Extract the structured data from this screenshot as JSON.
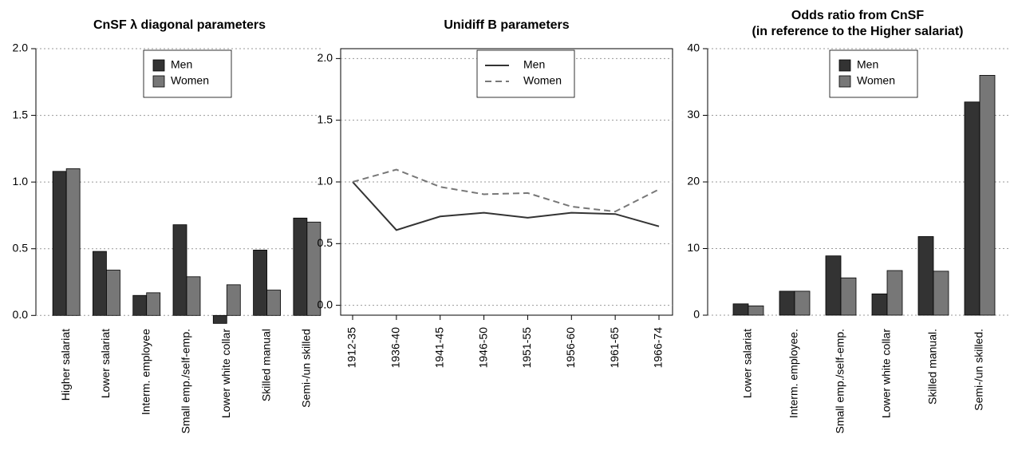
{
  "chart_data": [
    {
      "type": "bar",
      "title": [
        "CnSF λ diagonal parameters"
      ],
      "categories": [
        "Higher salariat",
        "Lower salariat",
        "Interm. employee",
        "Small emp./self-emp.",
        "Lower white collar",
        "Skilled manual",
        "Semi-/un skilled"
      ],
      "series": [
        {
          "name": "Men",
          "color": "#333333",
          "values": [
            1.08,
            0.48,
            0.15,
            0.68,
            -0.06,
            0.49,
            0.73
          ]
        },
        {
          "name": "Women",
          "color": "#777777",
          "values": [
            1.1,
            0.34,
            0.17,
            0.29,
            0.23,
            0.19,
            0.7
          ]
        }
      ],
      "ylim": [
        -0.07,
        2.0
      ],
      "yticks": [
        {
          "value": 0,
          "label": "0.0"
        },
        0.5,
        {
          "value": 1,
          "label": "1.0"
        },
        1.5,
        {
          "value": 2,
          "label": "2.0"
        }
      ],
      "grid": true,
      "legend": "top"
    },
    {
      "type": "line",
      "title": [
        "Unidiff B parameters"
      ],
      "categories": [
        "1912-35",
        "1936-40",
        "1941-45",
        "1946-50",
        "1951-55",
        "1956-60",
        "1961-65",
        "1966-74"
      ],
      "series": [
        {
          "name": "Men",
          "color": "#333333",
          "dash": "solid",
          "values": [
            1.0,
            0.61,
            0.72,
            0.75,
            0.71,
            0.75,
            0.74,
            0.64
          ]
        },
        {
          "name": "Women",
          "color": "#777777",
          "dash": "dashed",
          "values": [
            1.0,
            1.1,
            0.96,
            0.9,
            0.91,
            0.8,
            0.76,
            0.94
          ]
        }
      ],
      "ylim": [
        -0.08,
        2.08
      ],
      "yticks": [
        {
          "value": 0,
          "label": "0.0"
        },
        0.5,
        {
          "value": 1,
          "label": "1.0"
        },
        1.5,
        {
          "value": 2,
          "label": "2.0"
        }
      ],
      "grid": true,
      "legend": "top"
    },
    {
      "type": "bar",
      "title": [
        "Odds ratio from CnSF",
        "(in reference to the Higher salariat)"
      ],
      "categories": [
        "Lower salariat",
        "Interm. employee.",
        "Small emp./self-emp.",
        "Lower white collar",
        "Skilled manual.",
        "Semi-/un skilled."
      ],
      "series": [
        {
          "name": "Men",
          "color": "#333333",
          "values": [
            1.7,
            3.6,
            8.9,
            3.2,
            11.8,
            32
          ]
        },
        {
          "name": "Women",
          "color": "#777777",
          "values": [
            1.4,
            3.6,
            5.6,
            6.7,
            6.6,
            36
          ]
        }
      ],
      "ylim": [
        0,
        40
      ],
      "yticks": [
        0,
        10,
        20,
        30,
        40
      ],
      "grid": true,
      "legend": "top"
    }
  ]
}
